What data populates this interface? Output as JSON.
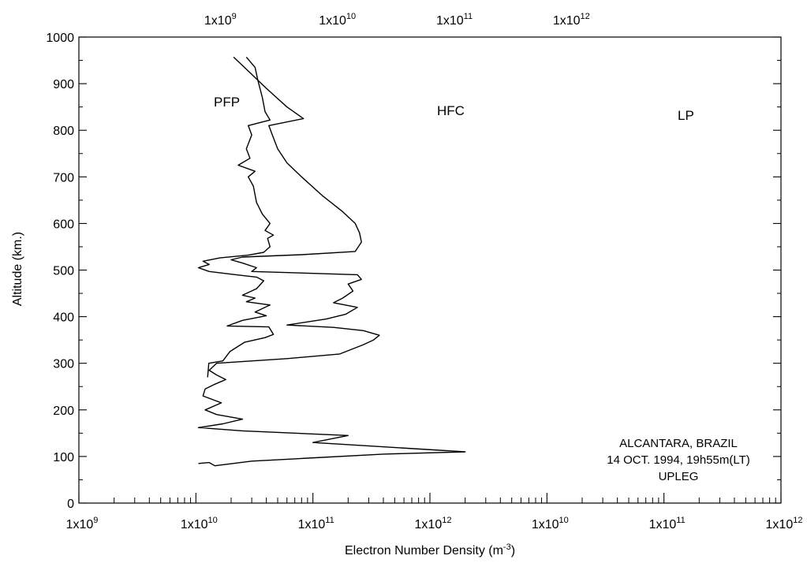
{
  "chart_data": {
    "type": "line",
    "xlabel": "Electron Number Density (m",
    "xlabel_sup": "-3",
    "xlabel_end": ")",
    "ylabel": "Altitude (km.)",
    "ylim": [
      0,
      1000
    ],
    "y_ticks": [
      0,
      100,
      200,
      300,
      400,
      500,
      600,
      700,
      800,
      900,
      1000
    ],
    "bottom_x_ticks": [
      {
        "base": "1x10",
        "exp": "9"
      },
      {
        "base": "1x10",
        "exp": "10"
      },
      {
        "base": "1x10",
        "exp": "11"
      },
      {
        "base": "1x10",
        "exp": "12"
      },
      {
        "base": "1x10",
        "exp": "10"
      },
      {
        "base": "1x10",
        "exp": "11"
      },
      {
        "base": "1x10",
        "exp": "12"
      }
    ],
    "top_x_ticks": [
      {
        "base": "1x10",
        "exp": "9"
      },
      {
        "base": "1x10",
        "exp": "10"
      },
      {
        "base": "1x10",
        "exp": "11"
      },
      {
        "base": "1x10",
        "exp": "12"
      }
    ],
    "annotation": [
      "ALCANTARA, BRAZIL",
      "14 OCT. 1994, 19h55m(LT)",
      "UPLEG"
    ],
    "series": [
      {
        "name": "PFP",
        "points": [
          [
            12600000000.0,
            270
          ],
          [
            12900000000.0,
            300
          ],
          [
            17000000000.0,
            305
          ],
          [
            19500000000.0,
            325
          ],
          [
            26000000000.0,
            345
          ],
          [
            39000000000.0,
            355
          ],
          [
            46000000000.0,
            362
          ],
          [
            42000000000.0,
            378
          ],
          [
            18500000000.0,
            380
          ],
          [
            25000000000.0,
            392
          ],
          [
            40000000000.0,
            402
          ],
          [
            32000000000.0,
            410
          ],
          [
            43000000000.0,
            425
          ],
          [
            27000000000.0,
            432
          ],
          [
            32000000000.0,
            440
          ],
          [
            25000000000.0,
            446
          ],
          [
            33000000000.0,
            460
          ],
          [
            38000000000.0,
            477
          ],
          [
            33000000000.0,
            485
          ],
          [
            22000000000.0,
            490
          ],
          [
            13000000000.0,
            497
          ],
          [
            10500000000.0,
            505
          ],
          [
            13000000000.0,
            512
          ],
          [
            11500000000.0,
            519
          ],
          [
            16000000000.0,
            526
          ],
          [
            28000000000.0,
            532
          ],
          [
            38000000000.0,
            538
          ],
          [
            43000000000.0,
            550
          ],
          [
            41000000000.0,
            568
          ],
          [
            46000000000.0,
            575
          ],
          [
            39000000000.0,
            585
          ],
          [
            43000000000.0,
            600
          ],
          [
            37000000000.0,
            620
          ],
          [
            33000000000.0,
            645
          ],
          [
            31000000000.0,
            680
          ],
          [
            28000000000.0,
            700
          ],
          [
            32000000000.0,
            712
          ],
          [
            23000000000.0,
            725
          ],
          [
            29000000000.0,
            740
          ],
          [
            27000000000.0,
            760
          ],
          [
            30000000000.0,
            790
          ],
          [
            28000000000.0,
            810
          ],
          [
            43000000000.0,
            822
          ],
          [
            39000000000.0,
            840
          ],
          [
            37000000000.0,
            870
          ],
          [
            34000000000.0,
            905
          ],
          [
            32000000000.0,
            935
          ],
          [
            27000000000.0,
            957
          ]
        ]
      },
      {
        "name": "HFC",
        "points": [
          [
            105000000000.0,
            85
          ],
          [
            130000000000.0,
            87
          ],
          [
            145000000000.0,
            80
          ],
          [
            300000000000.0,
            90
          ],
          [
            700000000000.0,
            95
          ],
          [
            4000000000000.0,
            105
          ],
          [
            20000000000000.0,
            110
          ],
          [
            1000000000000.0,
            130
          ],
          [
            2000000000000.0,
            145
          ],
          [
            250000000000.0,
            155
          ],
          [
            105000000000.0,
            162
          ],
          [
            170000000000.0,
            170
          ],
          [
            250000000000.0,
            180
          ],
          [
            150000000000.0,
            190
          ],
          [
            120000000000.0,
            200
          ],
          [
            165000000000.0,
            215
          ],
          [
            115000000000.0,
            230
          ],
          [
            120000000000.0,
            245
          ],
          [
            145000000000.0,
            255
          ],
          [
            180000000000.0,
            265
          ],
          [
            150000000000.0,
            275
          ],
          [
            130000000000.0,
            285
          ],
          [
            150000000000.0,
            300
          ],
          [
            600000000000.0,
            310
          ],
          [
            1700000000000.0,
            320
          ],
          [
            2700000000000.0,
            340
          ],
          [
            3300000000000.0,
            350
          ],
          [
            3700000000000.0,
            360
          ],
          [
            2700000000000.0,
            370
          ],
          [
            1500000000000.0,
            377
          ],
          [
            600000000000.0,
            382
          ],
          [
            1300000000000.0,
            395
          ],
          [
            1900000000000.0,
            405
          ],
          [
            2400000000000.0,
            420
          ],
          [
            1500000000000.0,
            430
          ],
          [
            1800000000000.0,
            440
          ],
          [
            2200000000000.0,
            455
          ],
          [
            2000000000000.0,
            470
          ],
          [
            2600000000000.0,
            480
          ],
          [
            2400000000000.0,
            490
          ],
          [
            300000000000.0,
            497
          ],
          [
            330000000000.0,
            505
          ],
          [
            250000000000.0,
            515
          ],
          [
            200000000000.0,
            522
          ],
          [
            250000000000.0,
            528
          ],
          [
            800000000000.0,
            533
          ],
          [
            2300000000000.0,
            540
          ],
          [
            2600000000000.0,
            560
          ],
          [
            2500000000000.0,
            580
          ],
          [
            2300000000000.0,
            600
          ],
          [
            1800000000000.0,
            625
          ],
          [
            1200000000000.0,
            660
          ],
          [
            800000000000.0,
            700
          ],
          [
            600000000000.0,
            730
          ],
          [
            500000000000.0,
            760
          ],
          [
            450000000000.0,
            790
          ],
          [
            420000000000.0,
            810
          ],
          [
            830000000000.0,
            825
          ],
          [
            600000000000.0,
            850
          ],
          [
            400000000000.0,
            890
          ],
          [
            300000000000.0,
            920
          ],
          [
            210000000000.0,
            957
          ]
        ]
      },
      {
        "name": "LP",
        "points": [
          [
            12000000000.0,
            300
          ],
          [
            20000000000.0,
            305
          ],
          [
            40000000000.0,
            310
          ],
          [
            110000000000.0,
            322
          ],
          [
            150000000000.0,
            340
          ],
          [
            170000000000.0,
            355
          ],
          [
            200000000000.0,
            362
          ],
          [
            160000000000.0,
            368
          ],
          [
            110000000000.0,
            375
          ],
          [
            50000000000.0,
            380
          ],
          [
            65000000000.0,
            390
          ],
          [
            60000000000.0,
            405
          ],
          [
            100000000000.0,
            420
          ],
          [
            90000000000.0,
            430
          ],
          [
            80000000000.0,
            440
          ],
          [
            95000000000.0,
            455
          ],
          [
            85000000000.0,
            470
          ],
          [
            110000000000.0,
            480
          ],
          [
            75000000000.0,
            490
          ],
          [
            25000000000.0,
            497
          ],
          [
            13000000000.0,
            503
          ],
          [
            5000000000.0,
            512
          ],
          [
            6500000000.0,
            520
          ],
          [
            12000000000.0,
            528
          ],
          [
            35000000000.0,
            533
          ],
          [
            90000000000.0,
            538
          ],
          [
            110000000000.0,
            545
          ],
          [
            135000000000.0,
            562
          ],
          [
            150000000000.0,
            575
          ],
          [
            100000000000.0,
            590
          ],
          [
            90000000000.0,
            610
          ],
          [
            65000000000.0,
            650
          ],
          [
            55000000000.0,
            690
          ],
          [
            45000000000.0,
            720
          ],
          [
            50000000000.0,
            740
          ],
          [
            42000000000.0,
            770
          ],
          [
            41000000000.0,
            800
          ],
          [
            78000000000.0,
            822
          ],
          [
            70000000000.0,
            850
          ],
          [
            60000000000.0,
            890
          ],
          [
            57000000000.0,
            930
          ],
          [
            51000000000.0,
            957
          ]
        ]
      }
    ]
  }
}
